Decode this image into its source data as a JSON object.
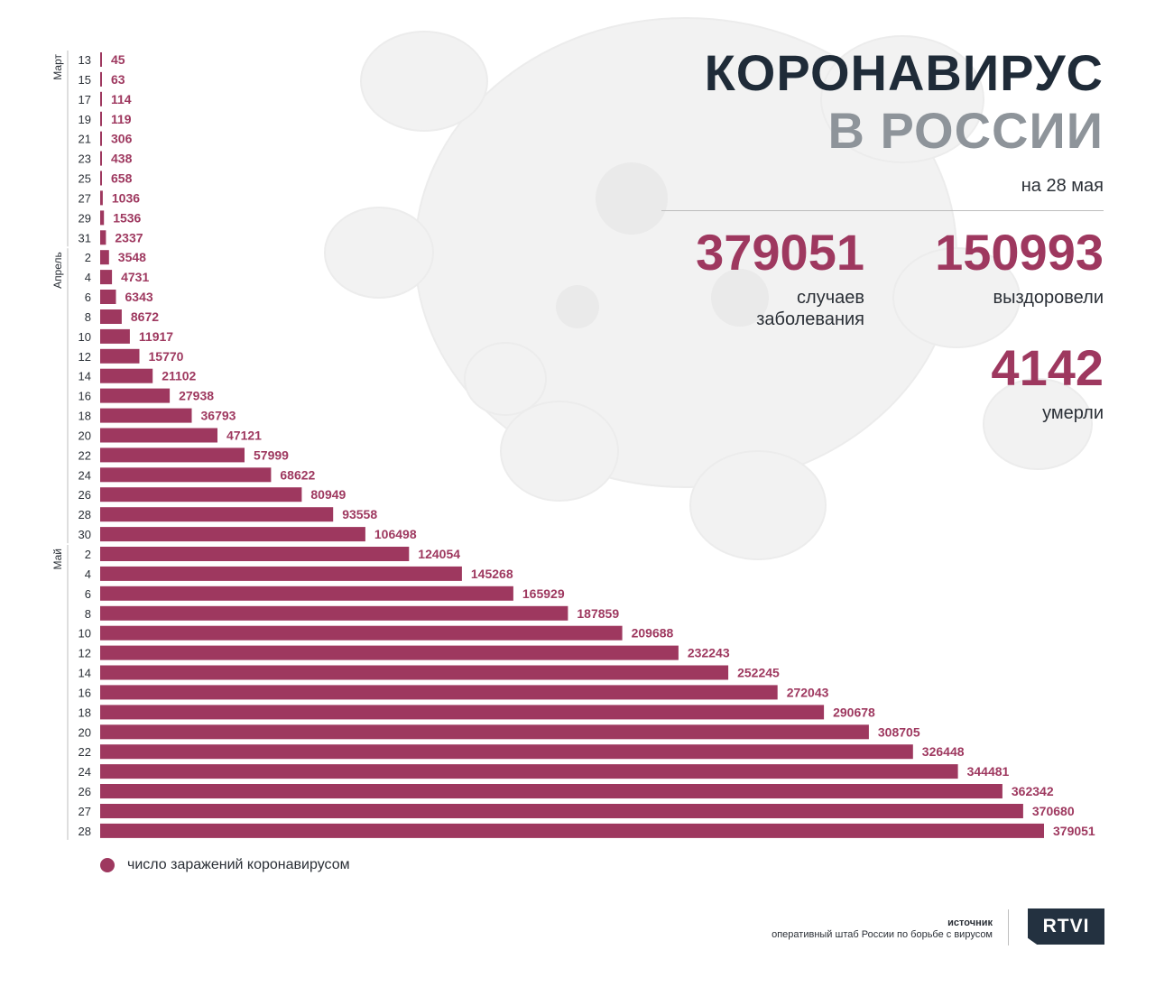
{
  "title": {
    "line1": "КОРОНАВИРУС",
    "line2": "В РОССИИ",
    "date": "на 28 мая"
  },
  "stats": {
    "cases_value": "379051",
    "cases_label_1": "случаев",
    "cases_label_2": "заболевания",
    "recovered_value": "150993",
    "recovered_label": "выздоровели",
    "deaths_value": "4142",
    "deaths_label": "умерли"
  },
  "legend": {
    "label": "число заражений коронавирусом"
  },
  "source": {
    "title": "источник",
    "text": "оперативный штаб России по борьбе с вирусом"
  },
  "logo": {
    "text": "RTVI"
  },
  "colors": {
    "bar": "#9e385f",
    "title_dark": "#1f2b38",
    "title_grey": "#8e949a",
    "logo_bg": "#233140"
  },
  "chart_data": {
    "type": "bar",
    "orientation": "horizontal",
    "months": [
      {
        "name": "Март",
        "start_index": 0,
        "end_index": 9
      },
      {
        "name": "Апрель",
        "start_index": 10,
        "end_index": 24
      },
      {
        "name": "Май",
        "start_index": 25,
        "end_index": 39
      }
    ],
    "categories": [
      "13",
      "15",
      "17",
      "19",
      "21",
      "23",
      "25",
      "27",
      "29",
      "31",
      "2",
      "4",
      "6",
      "8",
      "10",
      "12",
      "14",
      "16",
      "18",
      "20",
      "22",
      "24",
      "26",
      "28",
      "30",
      "2",
      "4",
      "6",
      "8",
      "10",
      "12",
      "14",
      "16",
      "18",
      "20",
      "22",
      "24",
      "26",
      "27",
      "28"
    ],
    "values": [
      45,
      63,
      114,
      119,
      306,
      438,
      658,
      1036,
      1536,
      2337,
      3548,
      4731,
      6343,
      8672,
      11917,
      15770,
      21102,
      27938,
      36793,
      47121,
      57999,
      68622,
      80949,
      93558,
      106498,
      124054,
      145268,
      165929,
      187859,
      209688,
      232243,
      252245,
      272043,
      290678,
      308705,
      326448,
      344481,
      362342,
      370680,
      379051
    ],
    "series": [
      {
        "name": "число заражений коронавирусом"
      }
    ],
    "xlim": [
      0,
      379051
    ],
    "grid": false
  }
}
